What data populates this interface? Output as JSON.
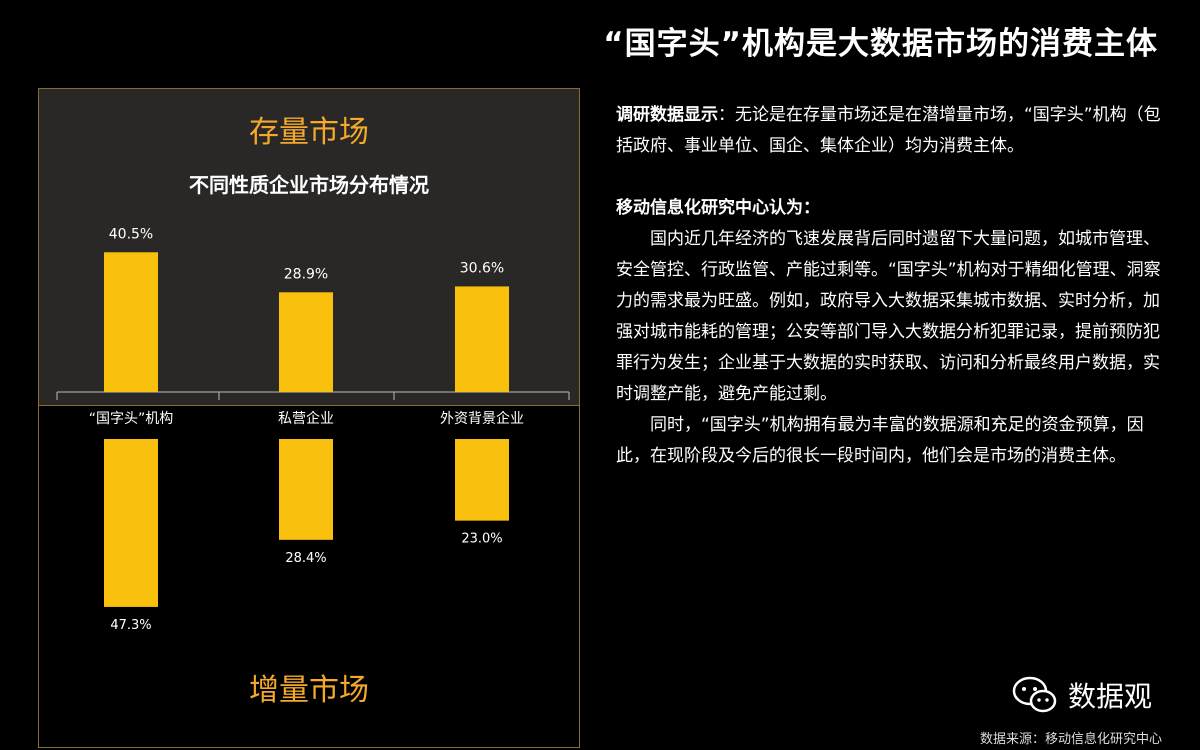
{
  "title": "“国字头”机构是大数据市场的消费主体",
  "panel": {
    "stock_label": "存量市场",
    "increment_label": "增量市场",
    "chart_title": "不同性质企业市场分布情况"
  },
  "chart_data": {
    "type": "bar",
    "title": "不同性质企业市场分布情况",
    "categories": [
      "“国字头”机构",
      "私营企业",
      "外资背景企业"
    ],
    "series": [
      {
        "name": "存量市场",
        "values": [
          40.5,
          28.9,
          30.6
        ],
        "labels": [
          "40.5%",
          "28.9%",
          "30.6%"
        ]
      },
      {
        "name": "增量市场",
        "values": [
          47.3,
          28.4,
          23.0
        ],
        "labels": [
          "47.3%",
          "28.4%",
          "23.0%"
        ]
      }
    ],
    "bar_color": "#f9c10e"
  },
  "text": {
    "p1_bold": "调研数据显示",
    "p1": "：无论是在存量市场还是在潜增量市场，“国字头”机构（包括政府、事业单位、国企、集体企业）均为消费主体。",
    "p2_heading": "移动信息化研究中心认为：",
    "p3": "国内近几年经济的飞速发展背后同时遗留下大量问题，如城市管理、安全管控、行政监管、产能过剩等。“国字头”机构对于精细化管理、洞察力的需求最为旺盛。例如，政府导入大数据采集城市数据、实时分析，加强对城市能耗的管理；公安等部门导入大数据分析犯罪记录，提前预防犯罪行为发生；企业基于大数据的实时获取、访问和分析最终用户数据，实时调整产能，避免产能过剩。",
    "p4": "同时，“国字头”机构拥有最为丰富的数据源和充足的资金预算，因此，在现阶段及今后的很长一段时间内，他们会是市场的消费主体。"
  },
  "brand": {
    "name": "数据观",
    "icon": "wechat-icon"
  },
  "source": "数据来源：移动信息化研究中心"
}
